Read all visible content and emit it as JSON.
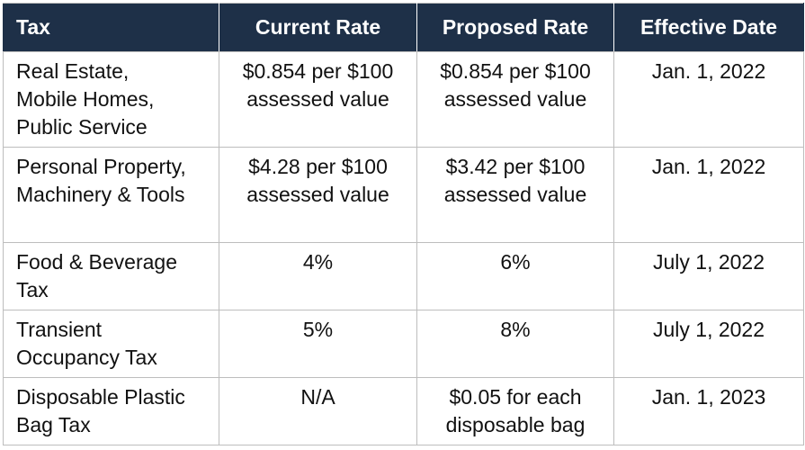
{
  "table": {
    "header": [
      "Tax",
      "Current Rate",
      "Proposed Rate",
      "Effective Date"
    ],
    "rows": [
      [
        "Real Estate,\nMobile Homes,\nPublic Service",
        "$0.854 per $100\nassessed value",
        "$0.854 per $100\nassessed value",
        "Jan. 1, 2022"
      ],
      [
        "Personal Property,\nMachinery & Tools",
        "$4.28 per $100\nassessed value",
        "$3.42 per $100\nassessed value",
        "Jan. 1, 2022"
      ],
      [
        "Food & Beverage\nTax",
        "4%",
        "6%",
        "July 1, 2022"
      ],
      [
        "Transient\nOccupancy Tax",
        "5%",
        "8%",
        "July 1, 2022"
      ],
      [
        "Disposable Plastic\nBag Tax",
        "N/A",
        "$0.05 for each\ndisposable bag",
        "Jan. 1, 2023"
      ]
    ]
  }
}
